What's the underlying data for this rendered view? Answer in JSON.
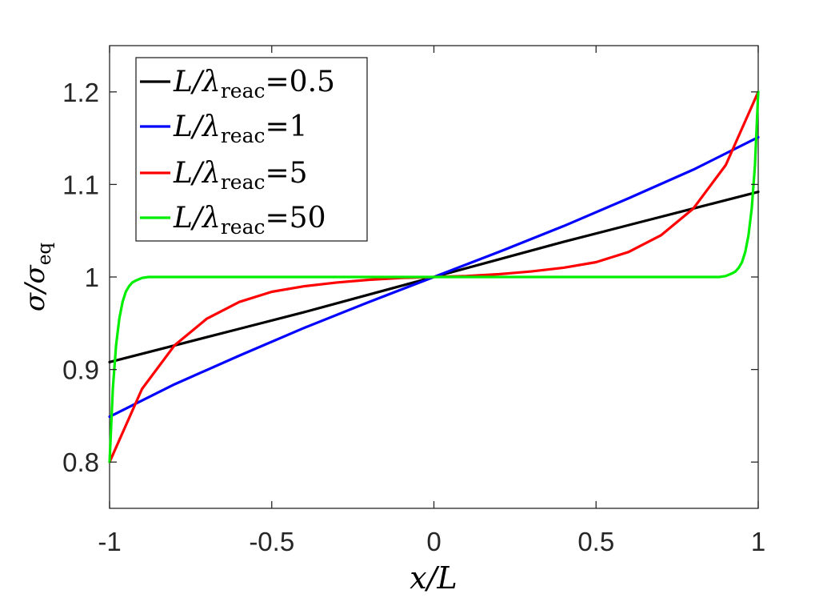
{
  "chart_data": {
    "type": "line",
    "xlabel": "x/L",
    "ylabel": "σ/σeq",
    "xlim": [
      -1,
      1
    ],
    "ylim": [
      0.75,
      1.25
    ],
    "xticks": [
      -1,
      -0.5,
      0,
      0.5,
      1
    ],
    "xtick_labels": [
      "-1",
      "-0.5",
      "0",
      "0.5",
      "1"
    ],
    "yticks": [
      0.8,
      0.9,
      1,
      1.1,
      1.2
    ],
    "ytick_labels": [
      "0.8",
      "0.9",
      "1",
      "1.1",
      "1.2"
    ],
    "grid": false,
    "legend_position": "top-left",
    "series": [
      {
        "name": "L/λreac=0.5",
        "legend_value": "0.5",
        "color": "#000000",
        "x": [
          -1,
          -0.8,
          -0.6,
          -0.4,
          -0.2,
          0,
          0.2,
          0.4,
          0.6,
          0.8,
          1
        ],
        "y": [
          0.908,
          0.926,
          0.944,
          0.962,
          0.981,
          1.0,
          1.019,
          1.038,
          1.056,
          1.074,
          1.092
        ]
      },
      {
        "name": "L/λreac=1",
        "legend_value": "1",
        "color": "#0000ff",
        "x": [
          -1,
          -0.8,
          -0.6,
          -0.4,
          -0.2,
          0,
          0.2,
          0.4,
          0.6,
          0.8,
          1
        ],
        "y": [
          0.849,
          0.884,
          0.915,
          0.945,
          0.973,
          1.0,
          1.027,
          1.055,
          1.085,
          1.116,
          1.151
        ]
      },
      {
        "name": "L/λreac=5",
        "legend_value": "5",
        "color": "#ff0000",
        "x": [
          -1,
          -0.9,
          -0.8,
          -0.7,
          -0.6,
          -0.5,
          -0.4,
          -0.3,
          -0.2,
          -0.1,
          0,
          0.1,
          0.2,
          0.3,
          0.4,
          0.5,
          0.6,
          0.7,
          0.8,
          0.9,
          1
        ],
        "y": [
          0.8,
          0.879,
          0.926,
          0.955,
          0.973,
          0.984,
          0.99,
          0.994,
          0.997,
          0.999,
          1.0,
          1.001,
          1.003,
          1.006,
          1.01,
          1.016,
          1.027,
          1.045,
          1.074,
          1.121,
          1.2
        ]
      },
      {
        "name": "L/λreac=50",
        "legend_value": "50",
        "color": "#00ee00",
        "x": [
          -1,
          -0.99,
          -0.98,
          -0.97,
          -0.96,
          -0.95,
          -0.94,
          -0.93,
          -0.92,
          -0.9,
          -0.88,
          -0.85,
          -0.8,
          0,
          0.8,
          0.85,
          0.88,
          0.9,
          0.92,
          0.93,
          0.94,
          0.95,
          0.96,
          0.97,
          0.98,
          0.99,
          1
        ],
        "y": [
          0.8,
          0.879,
          0.926,
          0.955,
          0.973,
          0.984,
          0.99,
          0.994,
          0.996,
          0.999,
          1.0,
          1.0,
          1.0,
          1.0,
          1.0,
          1.0,
          1.0,
          1.001,
          1.004,
          1.006,
          1.01,
          1.016,
          1.027,
          1.045,
          1.074,
          1.121,
          1.2
        ]
      }
    ]
  }
}
